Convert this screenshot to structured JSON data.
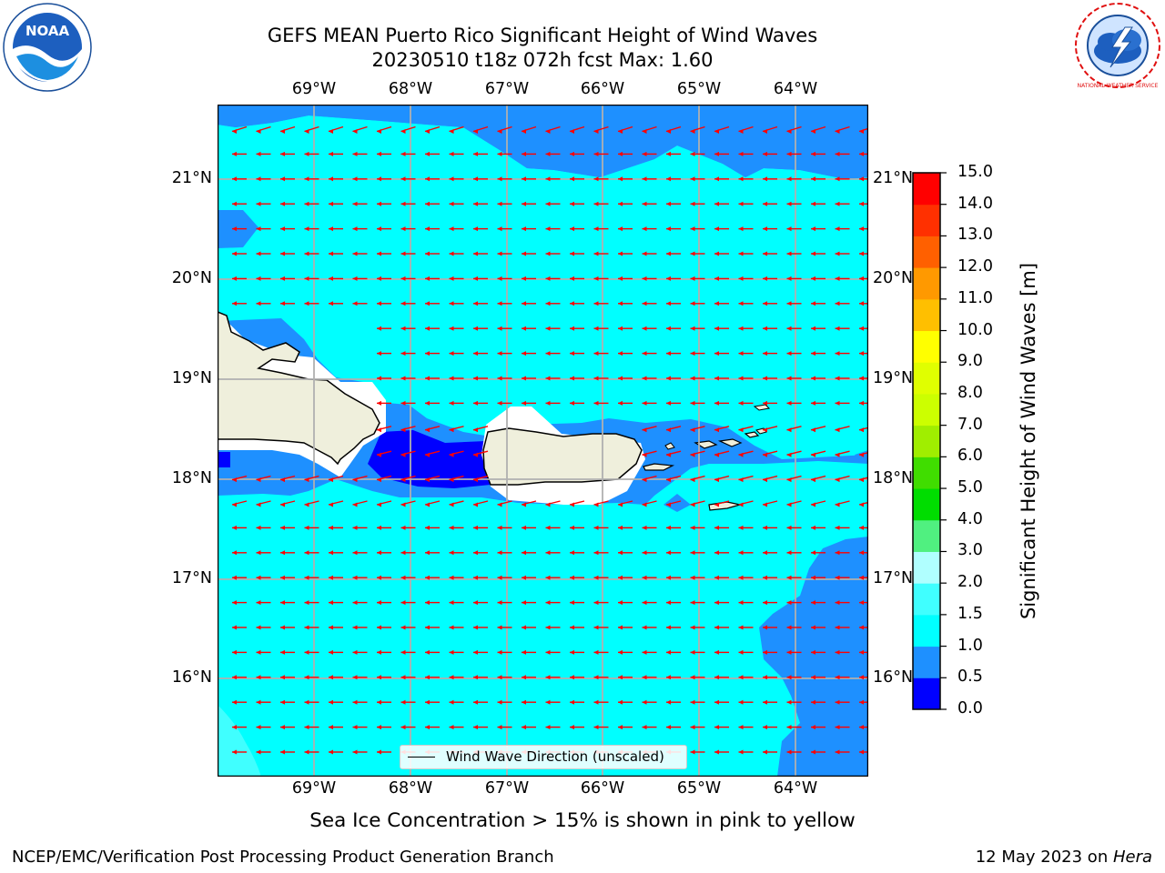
{
  "header": {
    "title_line1": "GEFS MEAN Puerto Rico Significant Height of Wind Waves",
    "title_line2": "20230510 t18z 072h fcst   Max: 1.60"
  },
  "map": {
    "lon_labels": [
      "69°W",
      "68°W",
      "67°W",
      "66°W",
      "65°W",
      "64°W"
    ],
    "lat_labels": [
      "21°N",
      "20°N",
      "19°N",
      "18°N",
      "17°N",
      "16°N"
    ],
    "land_color": "#efefdc",
    "arrow_color": "#ff0000",
    "wave_direction": "westward"
  },
  "legend": {
    "label": "Wind Wave Direction (unscaled)"
  },
  "colorbar": {
    "ticks": [
      "0.0",
      "0.5",
      "1.0",
      "1.5",
      "2.0",
      "3.0",
      "4.0",
      "5.0",
      "6.0",
      "7.0",
      "8.0",
      "9.0",
      "10.0",
      "11.0",
      "12.0",
      "13.0",
      "14.0",
      "15.0"
    ],
    "colors": [
      "#0000ff",
      "#1e90ff",
      "#00ffff",
      "#40ffff",
      "#b0ffff",
      "#50f080",
      "#00dd00",
      "#40dd00",
      "#a0ee00",
      "#ccff00",
      "#e0ff00",
      "#ffff00",
      "#ffbf00",
      "#ff9900",
      "#ff6000",
      "#ff3000",
      "#ff0000"
    ],
    "label": "Significant Height of Wind Waves [m]"
  },
  "note": "Sea Ice Concentration > 15% is shown in pink to yellow",
  "footer": {
    "left": "NCEP/EMC/Verification Post Processing Product Generation Branch",
    "right_prefix": "12 May 2023 on ",
    "right_machine": "Hera"
  },
  "logos": {
    "left": "NOAA",
    "right_ring": "NATIONAL WEATHER SERVICE"
  }
}
